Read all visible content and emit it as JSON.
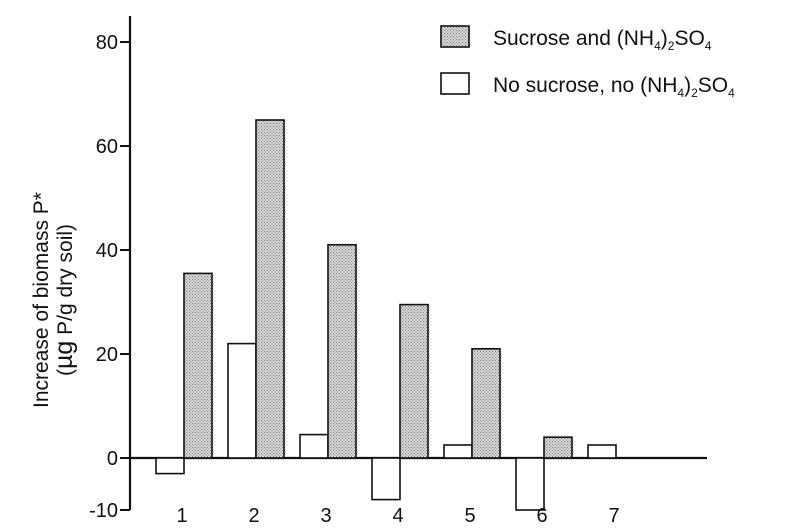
{
  "chart_data": {
    "type": "bar",
    "categories": [
      "1",
      "2",
      "3",
      "4",
      "5",
      "6",
      "7"
    ],
    "series": [
      {
        "name": "No sucrose, no (NH4)2SO4",
        "values": [
          -3,
          22,
          4.5,
          -8,
          2.5,
          -10,
          2.5
        ]
      },
      {
        "name": "Sucrose and (NH4)2SO4",
        "values": [
          35.5,
          65,
          41,
          29.5,
          21,
          4,
          null
        ]
      }
    ],
    "yticks": [
      -10,
      0,
      20,
      40,
      60,
      80
    ],
    "ylim": [
      -10,
      85
    ],
    "ylabel_line1": "Increase of biomass P*",
    "ylabel_line2_prefix": "(",
    "ylabel_line2_mu": "µg",
    "ylabel_line2_suffix": " P/g dry soil)",
    "xlabel": "",
    "title": "",
    "legend": {
      "placement": "top-right",
      "entries": [
        {
          "pre": "Sucrose and (NH",
          "sub1": "4",
          "mid": ")",
          "sub2": "2",
          "post": "SO",
          "sub3": "4",
          "fill": "stippled"
        },
        {
          "pre": "No sucrose, no (NH",
          "sub1": "4",
          "mid": ")",
          "sub2": "2",
          "post": "SO",
          "sub3": "4",
          "fill": "white"
        }
      ]
    },
    "colors": {
      "stipple_bg": "#d8d8d8",
      "stipple_dot": "#7a7a7a",
      "outline": "#111111"
    }
  }
}
